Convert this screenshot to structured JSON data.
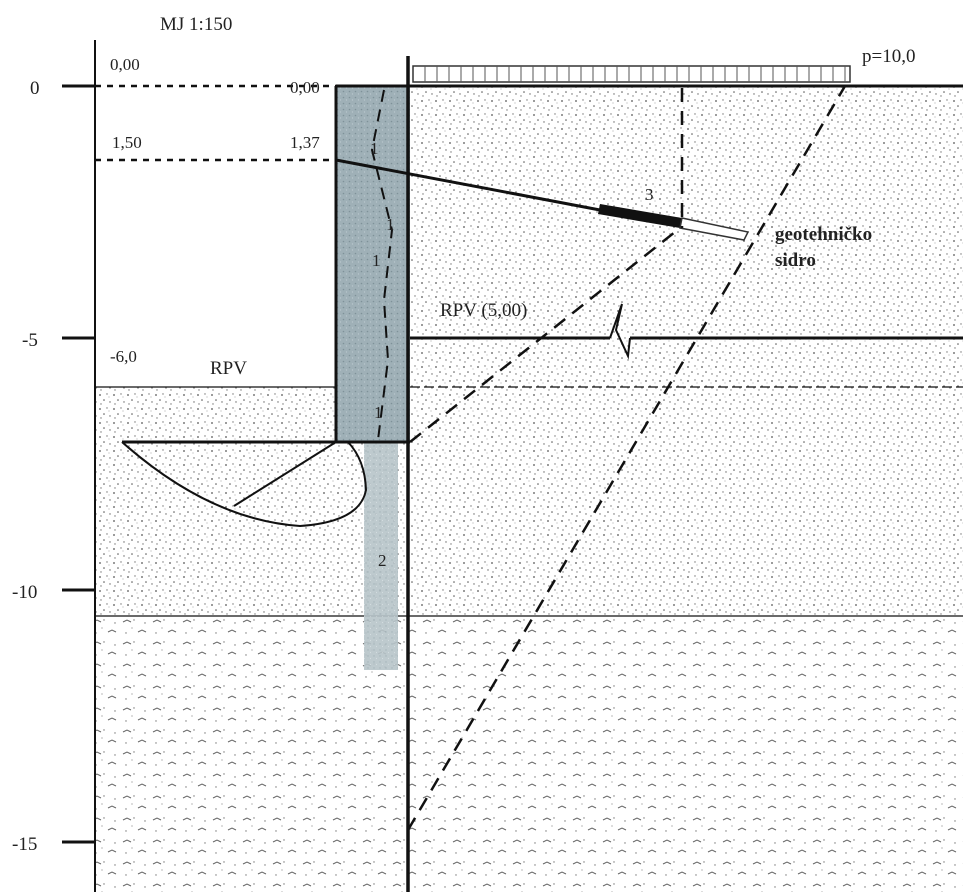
{
  "scale": "MJ 1:150",
  "load": "p=10,0",
  "axis_ticks": [
    "0",
    "-5",
    "-10",
    "-15"
  ],
  "levels": {
    "top_left": "0,00",
    "top_wall": "0,00",
    "anchor_level": "1,50",
    "anchor_head": "1,37",
    "excavation": "-6,0"
  },
  "labels": {
    "rpv_left": "RPV",
    "rpv_right": "RPV (5,00)",
    "anchor_line1": "geotehničko",
    "anchor_line2": "sidro"
  },
  "markers": {
    "m1a": "1",
    "m1b": "1",
    "m1c": "1",
    "m1d": "1",
    "m2": "2",
    "m3": "3"
  }
}
